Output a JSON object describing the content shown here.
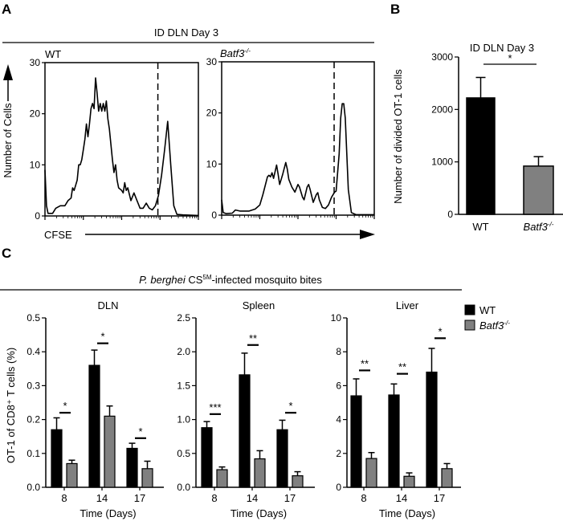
{
  "panels": {
    "a": "A",
    "b": "B",
    "c": "C"
  },
  "colors": {
    "wt": "#000000",
    "batf3": "#808080"
  },
  "chart_data": [
    {
      "type": "line",
      "panel": "A",
      "title": "ID DLN Day 3",
      "ylabel": "Number of Cells",
      "xlabel": "CFSE",
      "ylim": [
        0,
        30
      ],
      "yticks": [
        "0",
        "10",
        "20",
        "30"
      ],
      "x_scale": "log (4 decades, 0-100 channel units)",
      "series": [
        {
          "name": "WT",
          "label_main": "WT",
          "label_sup": "",
          "gate_x": 73.6,
          "points": [
            [
              0,
              9
            ],
            [
              1,
              2
            ],
            [
              2,
              0.5
            ],
            [
              5,
              0.5
            ],
            [
              7,
              1.5
            ],
            [
              10,
              2
            ],
            [
              13,
              2
            ],
            [
              15,
              3
            ],
            [
              17,
              3.5
            ],
            [
              18,
              5.5
            ],
            [
              19,
              5
            ],
            [
              20,
              6
            ],
            [
              21,
              7
            ],
            [
              22,
              10
            ],
            [
              23,
              10
            ],
            [
              24,
              11
            ],
            [
              25,
              13
            ],
            [
              26,
              15
            ],
            [
              27,
              18
            ],
            [
              28,
              15.5
            ],
            [
              29,
              18
            ],
            [
              30,
              21
            ],
            [
              31,
              22
            ],
            [
              32,
              21
            ],
            [
              33,
              27
            ],
            [
              34,
              24
            ],
            [
              35,
              20.5
            ],
            [
              36,
              22
            ],
            [
              37,
              20.5
            ],
            [
              38,
              22
            ],
            [
              39,
              20.5
            ],
            [
              40,
              22.5
            ],
            [
              41,
              19
            ],
            [
              42,
              17
            ],
            [
              43,
              14
            ],
            [
              44,
              11
            ],
            [
              45,
              8.5
            ],
            [
              46,
              10
            ],
            [
              47,
              7
            ],
            [
              48,
              5.5
            ],
            [
              50,
              5
            ],
            [
              51,
              4.5
            ],
            [
              52,
              6.5
            ],
            [
              53,
              5
            ],
            [
              54,
              5.5
            ],
            [
              56,
              3
            ],
            [
              58,
              4.5
            ],
            [
              60,
              3
            ],
            [
              62,
              1.5
            ],
            [
              64,
              1.5
            ],
            [
              66,
              2.5
            ],
            [
              68,
              1.5
            ],
            [
              70,
              1.2
            ],
            [
              72,
              2
            ],
            [
              74,
              4
            ],
            [
              76,
              8
            ],
            [
              78,
              13
            ],
            [
              80,
              18.5
            ],
            [
              82,
              10
            ],
            [
              84,
              2
            ],
            [
              86,
              0.3
            ],
            [
              90,
              0.2
            ],
            [
              100,
              0.1
            ]
          ]
        },
        {
          "name": "Batf3-/-",
          "label_main": "Batf3",
          "label_sup": "-/-",
          "gate_x": 73.7,
          "points": [
            [
              0,
              3
            ],
            [
              1,
              0.5
            ],
            [
              3,
              0.3
            ],
            [
              7,
              0.4
            ],
            [
              9,
              1
            ],
            [
              12,
              0.8
            ],
            [
              18,
              0.8
            ],
            [
              22,
              1.2
            ],
            [
              25,
              2
            ],
            [
              27,
              4
            ],
            [
              30,
              7.5
            ],
            [
              31,
              7.8
            ],
            [
              32,
              7.5
            ],
            [
              33,
              8.3
            ],
            [
              34,
              7.2
            ],
            [
              36,
              9.8
            ],
            [
              37,
              8
            ],
            [
              38,
              6
            ],
            [
              40,
              8
            ],
            [
              42,
              10.3
            ],
            [
              43,
              9
            ],
            [
              44,
              7
            ],
            [
              46,
              5.5
            ],
            [
              48,
              4.5
            ],
            [
              50,
              6
            ],
            [
              51,
              5.5
            ],
            [
              53,
              3.5
            ],
            [
              54,
              3
            ],
            [
              56,
              5.5
            ],
            [
              57,
              6
            ],
            [
              58,
              5
            ],
            [
              60,
              2.5
            ],
            [
              62,
              4
            ],
            [
              63,
              4.4
            ],
            [
              64,
              3
            ],
            [
              66,
              1.5
            ],
            [
              68,
              1.3
            ],
            [
              70,
              2
            ],
            [
              72,
              3.5
            ],
            [
              74,
              4.5
            ],
            [
              75,
              4.7
            ],
            [
              77,
              12
            ],
            [
              78,
              19
            ],
            [
              79,
              21.8
            ],
            [
              80,
              21.8
            ],
            [
              81,
              19
            ],
            [
              82,
              12
            ],
            [
              83,
              5
            ],
            [
              85,
              0.5
            ],
            [
              88,
              0.1
            ],
            [
              100,
              0.1
            ]
          ]
        }
      ]
    },
    {
      "type": "bar",
      "panel": "B",
      "title": "ID DLN Day 3",
      "ylabel": "Number of divided OT-1 cells",
      "ylim": [
        0,
        3000
      ],
      "yticks": [
        "0",
        "1000",
        "2000",
        "3000"
      ],
      "categories": [
        {
          "main": "WT",
          "sup": ""
        },
        {
          "main": "Batf3",
          "sup": "-/-"
        }
      ],
      "values": [
        2220,
        920
      ],
      "error_upper": [
        2610,
        1100
      ],
      "significance": "*"
    },
    {
      "type": "bar",
      "panel": "C",
      "title_italic": "P. berghei",
      "title_main": " CS",
      "title_sup": "5M",
      "title_rest": "-infected mosquito bites",
      "ylabel": "OT-1 of CD8⁺ T cells (%)",
      "xlabel": "Time (Days)",
      "categories": [
        "8",
        "14",
        "17"
      ],
      "legend": {
        "placement": "top-right",
        "wt": "WT",
        "batf3_main": "Batf3",
        "batf3_sup": "-/-"
      },
      "subplots": [
        {
          "title": "DLN",
          "ylim": [
            0,
            0.5
          ],
          "yticks": [
            "0.0",
            "0.1",
            "0.2",
            "0.3",
            "0.4",
            "0.5"
          ],
          "series": [
            {
              "name": "WT",
              "values": [
                0.17,
                0.36,
                0.115
              ],
              "error_upper": [
                0.205,
                0.405,
                0.13
              ]
            },
            {
              "name": "Batf3-/-",
              "values": [
                0.07,
                0.21,
                0.055
              ],
              "error_upper": [
                0.08,
                0.24,
                0.077
              ]
            }
          ],
          "significance": [
            "*",
            "*",
            "*"
          ],
          "sig_level": [
            0.22,
            0.425,
            0.145
          ]
        },
        {
          "title": "Spleen",
          "ylim": [
            0,
            2.5
          ],
          "yticks": [
            "0.0",
            "0.5",
            "1.0",
            "1.5",
            "2.0",
            "2.5"
          ],
          "series": [
            {
              "name": "WT",
              "values": [
                0.88,
                1.66,
                0.85
              ],
              "error_upper": [
                0.97,
                1.98,
                0.99
              ]
            },
            {
              "name": "Batf3-/-",
              "values": [
                0.26,
                0.42,
                0.17
              ],
              "error_upper": [
                0.3,
                0.54,
                0.23
              ]
            }
          ],
          "significance": [
            "***",
            "**",
            "*"
          ],
          "sig_level": [
            1.08,
            2.1,
            1.1
          ]
        },
        {
          "title": "Liver",
          "ylim": [
            0,
            10
          ],
          "yticks": [
            "0",
            "2",
            "4",
            "6",
            "8",
            "10"
          ],
          "series": [
            {
              "name": "WT",
              "values": [
                5.4,
                5.45,
                6.8
              ],
              "error_upper": [
                6.4,
                6.1,
                8.2
              ]
            },
            {
              "name": "Batf3-/-",
              "values": [
                1.7,
                0.65,
                1.1
              ],
              "error_upper": [
                2.05,
                0.85,
                1.4
              ]
            }
          ],
          "significance": [
            "**",
            "**",
            "*"
          ],
          "sig_level": [
            6.9,
            6.7,
            8.8
          ]
        }
      ]
    }
  ]
}
